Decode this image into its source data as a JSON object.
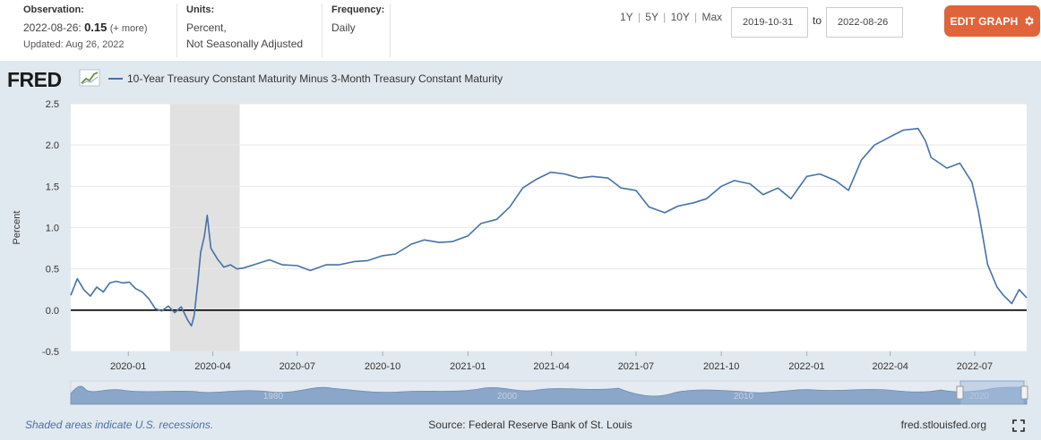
{
  "header": {
    "observation_label": "Observation:",
    "observation_date": "2022-08-26:",
    "observation_value": "0.15",
    "observation_more": "(+ more)",
    "updated": "Updated: Aug 26, 2022",
    "units_label": "Units:",
    "units_line1": "Percent,",
    "units_line2": "Not Seasonally Adjusted",
    "frequency_label": "Frequency:",
    "frequency_value": "Daily",
    "range_buttons": [
      "1Y",
      "5Y",
      "10Y",
      "Max"
    ],
    "range_sep": "|",
    "start_date": "2019-10-31",
    "to_label": "to",
    "end_date": "2022-08-26",
    "edit_button": "EDIT GRAPH"
  },
  "chart_data": {
    "type": "line",
    "logo": "FRED",
    "title": "10-Year Treasury Constant Maturity Minus 3-Month Treasury Constant Maturity",
    "ylabel": "Percent",
    "xlabel": "",
    "ylim": [
      -0.5,
      2.5
    ],
    "yticks": [
      "2.5",
      "2.0",
      "1.5",
      "1.0",
      "0.5",
      "0.0",
      "-0.5"
    ],
    "ytick_values": [
      2.5,
      2.0,
      1.5,
      1.0,
      0.5,
      0.0,
      -0.5
    ],
    "xlim": [
      "2019-10-31",
      "2022-08-26"
    ],
    "xticks": [
      "2020-01",
      "2020-04",
      "2020-07",
      "2020-10",
      "2021-01",
      "2021-04",
      "2021-07",
      "2021-10",
      "2022-01",
      "2022-04",
      "2022-07"
    ],
    "xtick_dates": [
      "2020-01-01",
      "2020-04-01",
      "2020-07-01",
      "2020-10-01",
      "2021-01-01",
      "2021-04-01",
      "2021-07-01",
      "2021-10-01",
      "2022-01-01",
      "2022-04-01",
      "2022-07-01"
    ],
    "recession": {
      "start": "2020-02-15",
      "end": "2020-04-30"
    },
    "line_color": "#4572a7",
    "zero_line": true,
    "series": [
      {
        "name": "10-Year Treasury Constant Maturity Minus 3-Month Treasury Constant Maturity",
        "x": [
          "2019-10-31",
          "2019-11-07",
          "2019-11-14",
          "2019-11-21",
          "2019-11-28",
          "2019-12-05",
          "2019-12-12",
          "2019-12-19",
          "2019-12-26",
          "2020-01-02",
          "2020-01-09",
          "2020-01-16",
          "2020-01-23",
          "2020-01-30",
          "2020-02-06",
          "2020-02-13",
          "2020-02-20",
          "2020-02-27",
          "2020-03-05",
          "2020-03-09",
          "2020-03-12",
          "2020-03-16",
          "2020-03-19",
          "2020-03-23",
          "2020-03-26",
          "2020-03-30",
          "2020-04-06",
          "2020-04-13",
          "2020-04-20",
          "2020-04-27",
          "2020-05-04",
          "2020-05-15",
          "2020-06-01",
          "2020-06-15",
          "2020-07-01",
          "2020-07-15",
          "2020-08-01",
          "2020-08-15",
          "2020-09-01",
          "2020-09-15",
          "2020-10-01",
          "2020-10-15",
          "2020-11-01",
          "2020-11-15",
          "2020-12-01",
          "2020-12-15",
          "2021-01-01",
          "2021-01-15",
          "2021-02-01",
          "2021-02-15",
          "2021-03-01",
          "2021-03-15",
          "2021-03-31",
          "2021-04-15",
          "2021-05-01",
          "2021-05-15",
          "2021-06-01",
          "2021-06-15",
          "2021-07-01",
          "2021-07-15",
          "2021-08-01",
          "2021-08-15",
          "2021-09-01",
          "2021-09-15",
          "2021-10-01",
          "2021-10-15",
          "2021-11-01",
          "2021-11-15",
          "2021-12-01",
          "2021-12-15",
          "2022-01-01",
          "2022-01-15",
          "2022-02-01",
          "2022-02-15",
          "2022-03-01",
          "2022-03-15",
          "2022-04-01",
          "2022-04-15",
          "2022-05-01",
          "2022-05-09",
          "2022-05-15",
          "2022-06-01",
          "2022-06-15",
          "2022-06-28",
          "2022-07-05",
          "2022-07-15",
          "2022-07-25",
          "2022-08-01",
          "2022-08-10",
          "2022-08-18",
          "2022-08-26"
        ],
        "values": [
          0.18,
          0.38,
          0.25,
          0.17,
          0.28,
          0.22,
          0.33,
          0.35,
          0.33,
          0.34,
          0.26,
          0.22,
          0.14,
          0.02,
          -0.01,
          0.05,
          -0.03,
          0.04,
          -0.12,
          -0.19,
          -0.06,
          0.35,
          0.7,
          0.9,
          1.15,
          0.75,
          0.62,
          0.52,
          0.55,
          0.5,
          0.51,
          0.55,
          0.61,
          0.55,
          0.54,
          0.48,
          0.55,
          0.55,
          0.59,
          0.6,
          0.66,
          0.68,
          0.8,
          0.85,
          0.82,
          0.83,
          0.9,
          1.05,
          1.1,
          1.25,
          1.48,
          1.58,
          1.67,
          1.65,
          1.6,
          1.62,
          1.6,
          1.48,
          1.45,
          1.25,
          1.18,
          1.26,
          1.3,
          1.35,
          1.5,
          1.57,
          1.53,
          1.4,
          1.48,
          1.35,
          1.62,
          1.65,
          1.57,
          1.45,
          1.82,
          2.0,
          2.1,
          2.18,
          2.2,
          2.05,
          1.85,
          1.72,
          1.78,
          1.55,
          1.2,
          0.55,
          0.28,
          0.18,
          0.08,
          0.25,
          0.15
        ]
      }
    ],
    "attribution_left": "Shaded areas indicate U.S. recessions.",
    "attribution_center": "Source: Federal Reserve Bank of St. Louis",
    "attribution_right": "fred.stlouisfed.org",
    "navigator_labels": [
      "1980",
      "2000",
      "2010",
      "2020"
    ]
  }
}
